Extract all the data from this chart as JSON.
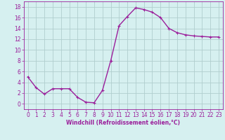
{
  "x": [
    0,
    1,
    2,
    3,
    4,
    5,
    6,
    7,
    8,
    9,
    10,
    11,
    12,
    13,
    14,
    15,
    16,
    17,
    18,
    19,
    20,
    21,
    22,
    23
  ],
  "y": [
    5.0,
    3.0,
    1.8,
    2.8,
    2.8,
    2.8,
    1.2,
    0.3,
    0.2,
    2.5,
    8.0,
    14.5,
    16.2,
    17.8,
    17.5,
    17.0,
    16.0,
    14.0,
    13.2,
    12.8,
    12.6,
    12.5,
    12.4,
    12.4
  ],
  "line_color": "#9b1f9b",
  "marker": "+",
  "marker_size": 3,
  "marker_lw": 0.8,
  "bg_color": "#d6f0f0",
  "grid_color": "#b0cece",
  "xlabel": "Windchill (Refroidissement éolien,°C)",
  "xlim": [
    -0.5,
    23.5
  ],
  "ylim": [
    -1,
    19
  ],
  "yticks": [
    0,
    2,
    4,
    6,
    8,
    10,
    12,
    14,
    16,
    18
  ],
  "xticks": [
    0,
    1,
    2,
    3,
    4,
    5,
    6,
    7,
    8,
    9,
    10,
    11,
    12,
    13,
    14,
    15,
    16,
    17,
    18,
    19,
    20,
    21,
    22,
    23
  ],
  "tick_color": "#9b1f9b",
  "label_color": "#9b1f9b",
  "axis_color": "#9b1f9b",
  "tick_fontsize": 5.5,
  "xlabel_fontsize": 5.5,
  "line_width": 1.0
}
